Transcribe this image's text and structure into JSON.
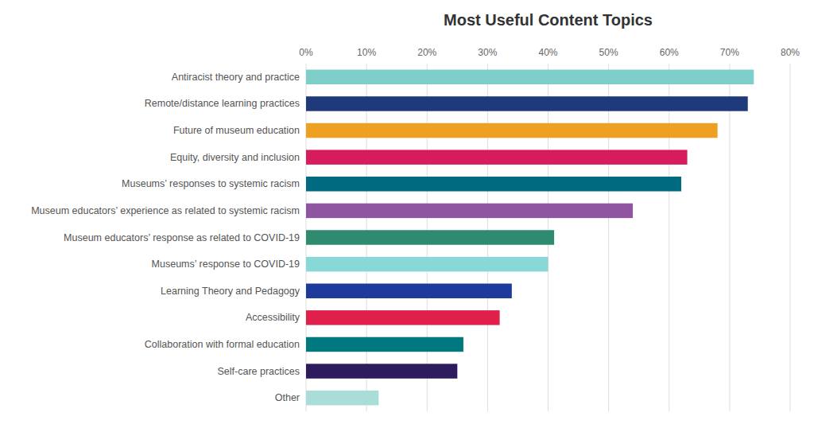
{
  "chart_data": {
    "type": "bar",
    "orientation": "horizontal",
    "title": "Most Useful Content Topics",
    "categories": [
      "Antiracist theory and practice",
      "Remote/distance learning practices",
      "Future of museum education",
      "Equity, diversity and inclusion",
      "Museums’ responses to systemic racism",
      "Museum educators’ experience as related to systemic racism",
      "Museum educators’ response as related to COVID-19",
      "Museums’ response to COVID-19",
      "Learning Theory and Pedagogy",
      "Accessibility",
      "Collaboration with formal education",
      "Self-care practices",
      "Other"
    ],
    "values": [
      74,
      73,
      68,
      63,
      62,
      54,
      41,
      40,
      34,
      32,
      26,
      25,
      12
    ],
    "colors": [
      "#7ececa",
      "#1e3a7a",
      "#f0a020",
      "#d81b5e",
      "#006b80",
      "#9055a0",
      "#2e8b70",
      "#88d8d8",
      "#1e3a9a",
      "#e0204a",
      "#007880",
      "#2d1b5e",
      "#a8ddd8"
    ],
    "xlim": [
      0,
      80
    ],
    "xticks": [
      {
        "value": 0,
        "label": "0%"
      },
      {
        "value": 10,
        "label": "10%"
      },
      {
        "value": 20,
        "label": "20%"
      },
      {
        "value": 30,
        "label": "30%"
      },
      {
        "value": 40,
        "label": "40%"
      },
      {
        "value": 50,
        "label": "50%"
      },
      {
        "value": 60,
        "label": "60%"
      },
      {
        "value": 70,
        "label": "70%"
      },
      {
        "value": 80,
        "label": "80%"
      }
    ],
    "grid": true
  }
}
